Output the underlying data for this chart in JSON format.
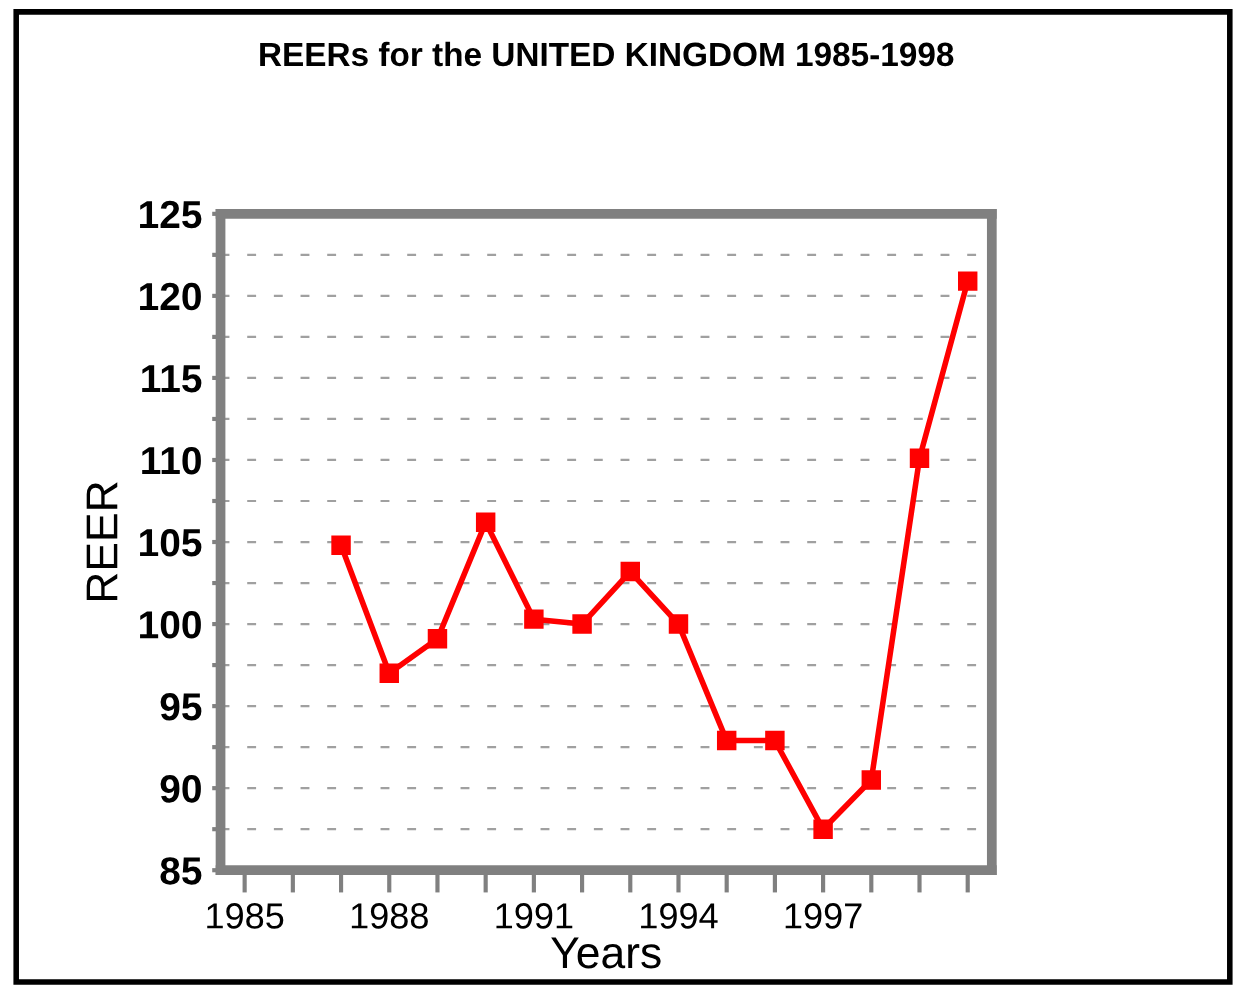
{
  "chart_data": {
    "type": "line",
    "title": "REERs for the UNITED KINGDOM 1985-1998",
    "xlabel": "Years",
    "ylabel": "REER",
    "x": [
      1987,
      1988,
      1989,
      1990,
      1991,
      1992,
      1993,
      1994,
      1995,
      1996,
      1997,
      1998,
      1999,
      2000
    ],
    "series": [
      {
        "color": "#ff0000",
        "values": [
          104.8,
          97.0,
          99.1,
          106.2,
          100.3,
          100.0,
          103.2,
          100.0,
          92.9,
          92.9,
          87.5,
          90.5,
          110.1,
          120.9
        ]
      }
    ],
    "xlim": [
      1984.5,
      2000.5
    ],
    "xticks": [
      1985,
      {
        "value": 1986,
        "label": null
      },
      {
        "value": 1987,
        "label": null
      },
      1988,
      {
        "value": 1989,
        "label": null
      },
      {
        "value": 1990,
        "label": null
      },
      1991,
      {
        "value": 1992,
        "label": null
      },
      {
        "value": 1993,
        "label": null
      },
      1994,
      {
        "value": 1995,
        "label": null
      },
      {
        "value": 1996,
        "label": null
      },
      1997,
      {
        "value": 1998,
        "label": null
      },
      {
        "value": 1999,
        "label": null
      },
      {
        "value": 2000,
        "label": null
      }
    ],
    "ylim": [
      85,
      125
    ],
    "yticks": [
      85,
      {
        "value": 87.5,
        "label": null
      },
      90,
      {
        "value": 92.5,
        "label": null
      },
      95,
      {
        "value": 97.5,
        "label": null
      },
      100,
      {
        "value": 102.5,
        "label": null
      },
      105,
      {
        "value": 107.5,
        "label": null
      },
      110,
      {
        "value": 112.5,
        "label": null
      },
      115,
      {
        "value": 117.5,
        "label": null
      },
      120,
      {
        "value": 122.5,
        "label": null
      },
      125
    ],
    "grid": "y",
    "marker": "square",
    "line_style": "solid",
    "legend": false
  }
}
